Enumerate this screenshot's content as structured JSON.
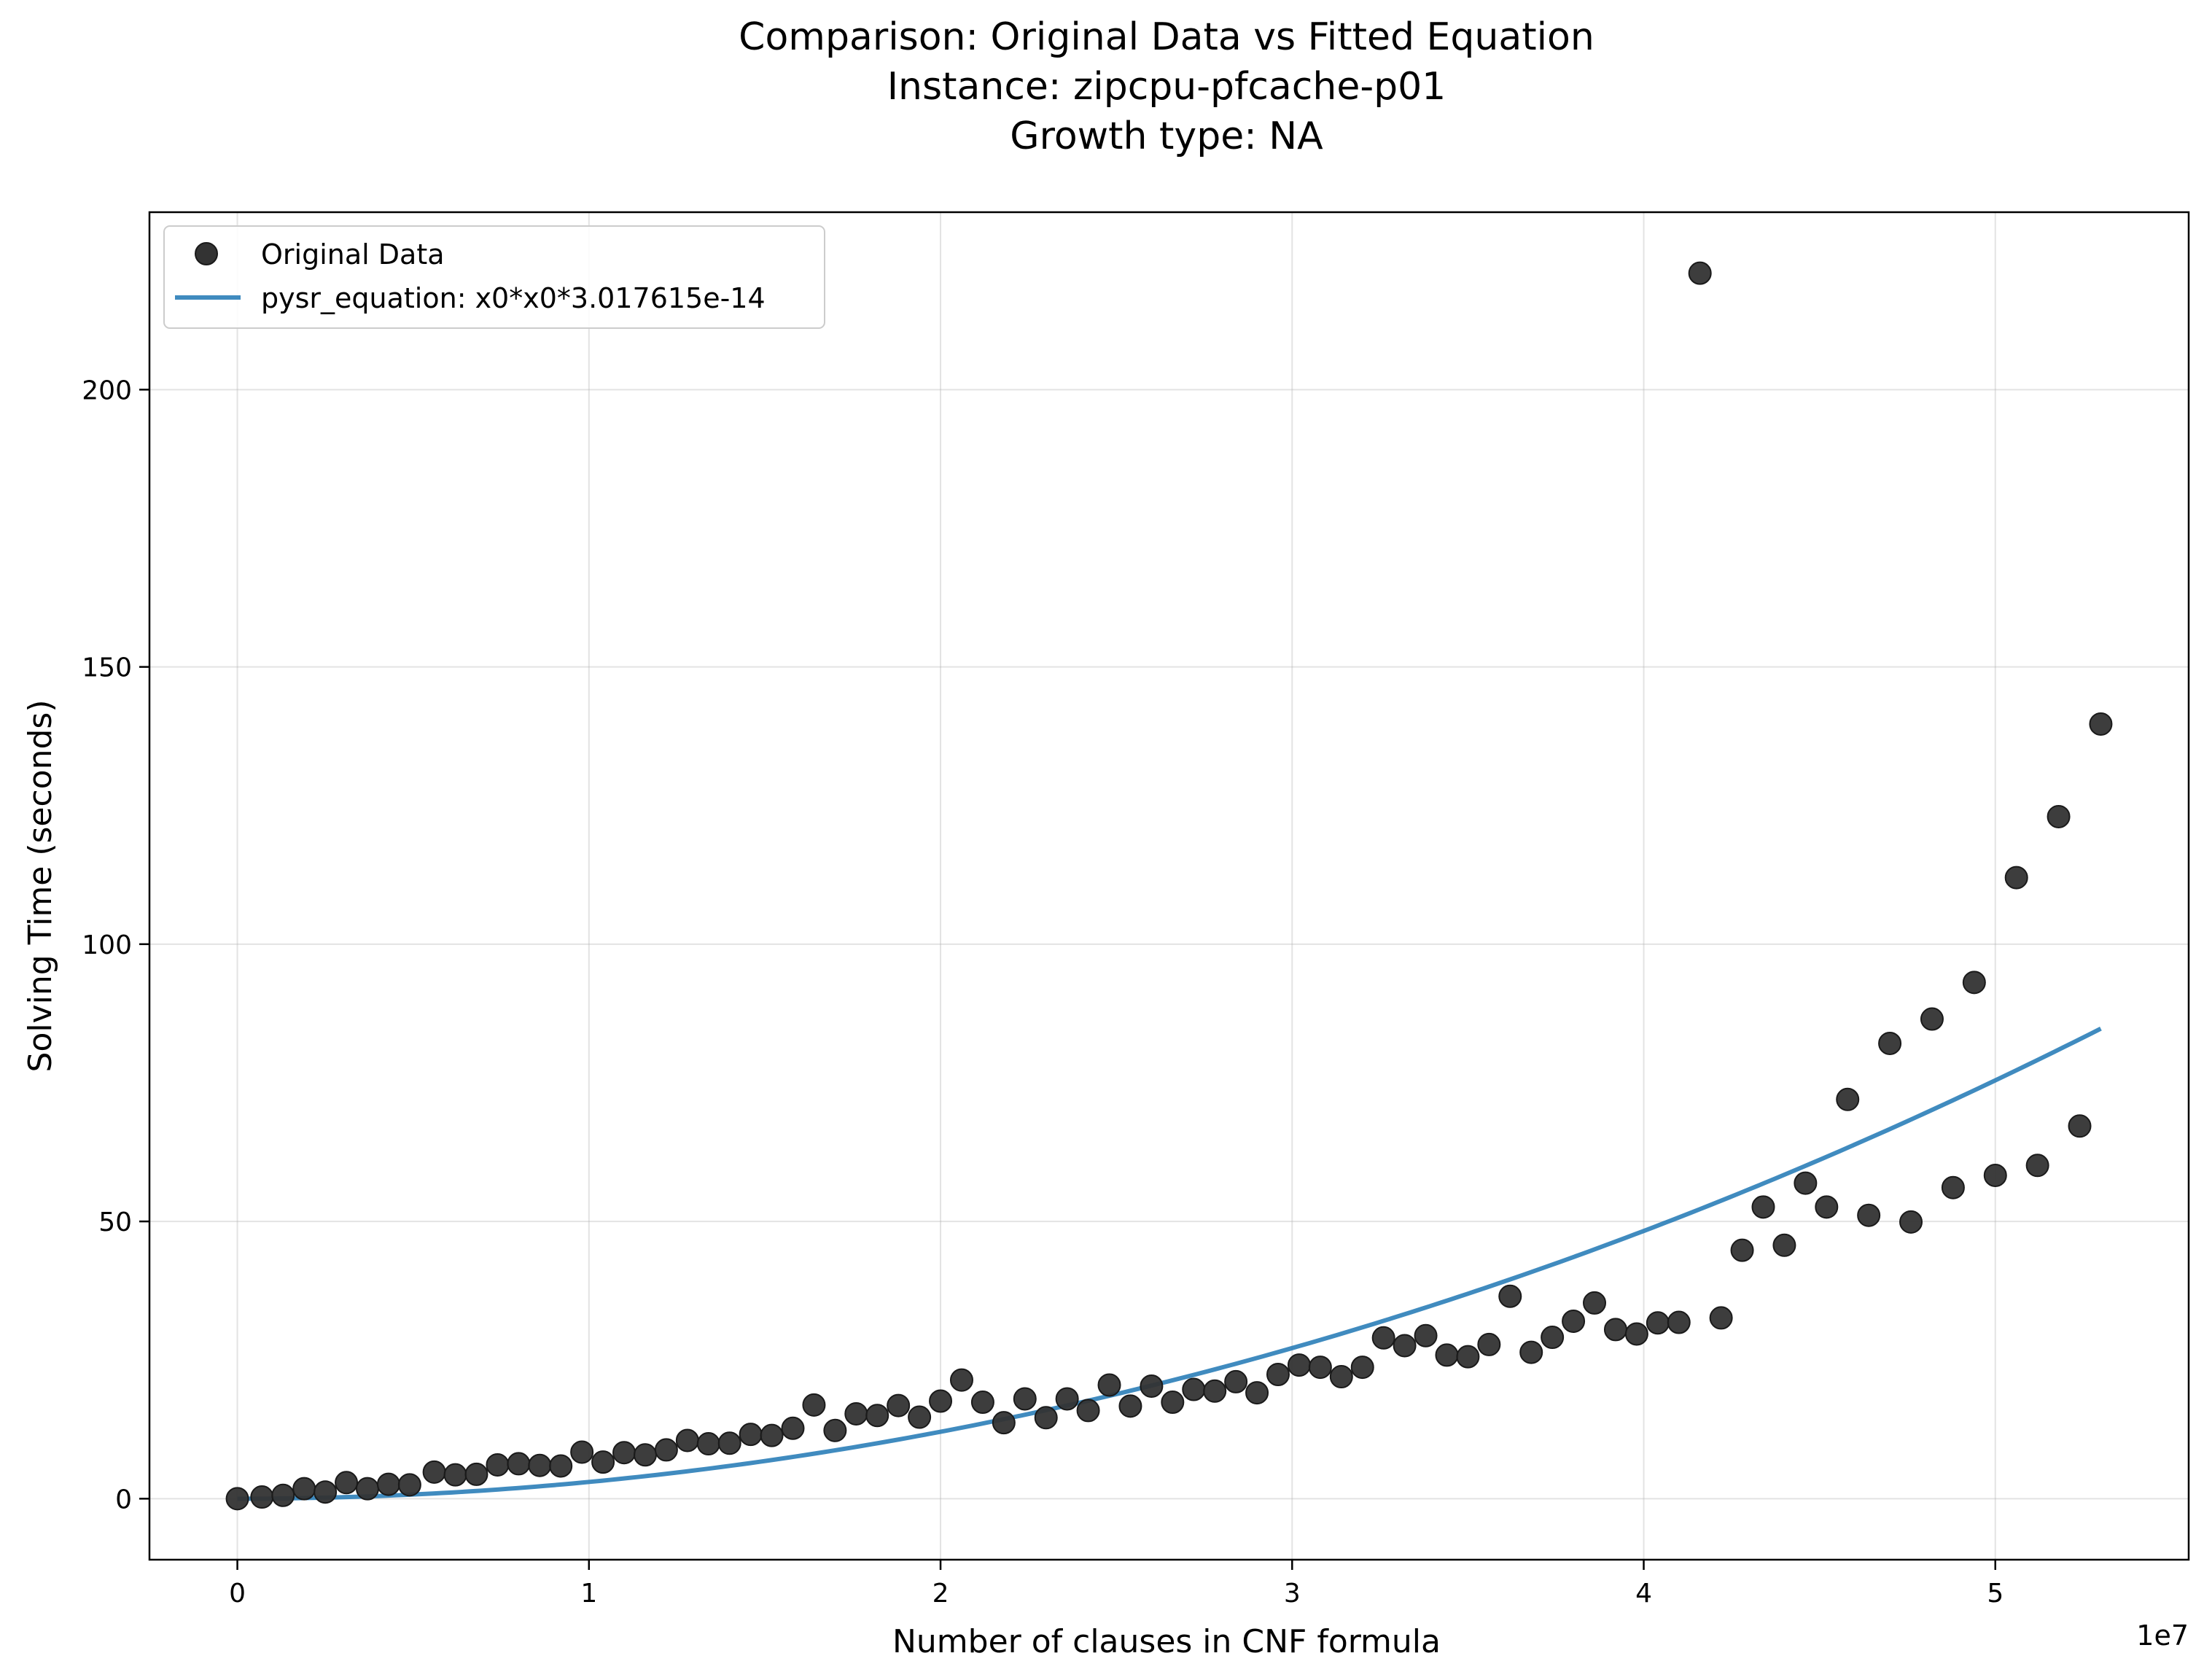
{
  "chart_data": {
    "type": "scatter",
    "title_lines": [
      "Comparison: Original Data vs Fitted Equation",
      "Instance: zipcpu-pfcache-p01",
      "Growth type: NA"
    ],
    "xlabel": "Number of clauses in CNF formula",
    "ylabel": "Solving Time (seconds)",
    "x_offset_label": "1e7",
    "x_scale": 10000000,
    "xlim": [
      -2500000,
      55500000
    ],
    "ylim": [
      -11,
      232
    ],
    "x_ticks": [
      0,
      10000000,
      20000000,
      30000000,
      40000000,
      50000000
    ],
    "x_tick_labels": [
      "0",
      "1",
      "2",
      "3",
      "4",
      "5"
    ],
    "y_ticks": [
      0,
      50,
      100,
      150,
      200
    ],
    "y_tick_labels": [
      "0",
      "50",
      "100",
      "150",
      "200"
    ],
    "grid": true,
    "legend_position": "top-left",
    "series": [
      {
        "name": "Original Data",
        "kind": "scatter",
        "color": "#333333",
        "points": [
          [
            0,
            0.0
          ],
          [
            700000,
            0.3
          ],
          [
            1300000,
            0.6
          ],
          [
            1900000,
            1.8
          ],
          [
            2500000,
            1.2
          ],
          [
            3100000,
            2.9
          ],
          [
            3700000,
            1.8
          ],
          [
            4300000,
            2.6
          ],
          [
            4900000,
            2.5
          ],
          [
            5600000,
            4.8
          ],
          [
            6200000,
            4.3
          ],
          [
            6800000,
            4.4
          ],
          [
            7400000,
            6.1
          ],
          [
            8000000,
            6.3
          ],
          [
            8600000,
            6.0
          ],
          [
            9200000,
            5.9
          ],
          [
            9800000,
            8.4
          ],
          [
            10400000,
            6.6
          ],
          [
            11000000,
            8.3
          ],
          [
            11600000,
            7.9
          ],
          [
            12200000,
            8.8
          ],
          [
            12800000,
            10.5
          ],
          [
            13400000,
            9.9
          ],
          [
            14000000,
            10.0
          ],
          [
            14600000,
            11.6
          ],
          [
            15200000,
            11.4
          ],
          [
            15800000,
            12.7
          ],
          [
            16400000,
            16.9
          ],
          [
            17000000,
            12.3
          ],
          [
            17600000,
            15.3
          ],
          [
            18200000,
            15.0
          ],
          [
            18800000,
            16.8
          ],
          [
            19400000,
            14.7
          ],
          [
            20000000,
            17.6
          ],
          [
            20600000,
            21.4
          ],
          [
            21200000,
            17.4
          ],
          [
            21800000,
            13.7
          ],
          [
            22400000,
            18.0
          ],
          [
            23000000,
            14.6
          ],
          [
            23600000,
            18.0
          ],
          [
            24200000,
            15.9
          ],
          [
            24800000,
            20.5
          ],
          [
            25400000,
            16.7
          ],
          [
            26000000,
            20.3
          ],
          [
            26600000,
            17.4
          ],
          [
            27200000,
            19.7
          ],
          [
            27800000,
            19.4
          ],
          [
            28400000,
            21.1
          ],
          [
            29000000,
            19.1
          ],
          [
            29600000,
            22.4
          ],
          [
            30200000,
            24.1
          ],
          [
            30800000,
            23.7
          ],
          [
            31400000,
            22.0
          ],
          [
            32000000,
            23.7
          ],
          [
            32600000,
            29.0
          ],
          [
            33200000,
            27.6
          ],
          [
            33800000,
            29.4
          ],
          [
            34400000,
            25.9
          ],
          [
            35000000,
            25.6
          ],
          [
            35600000,
            27.8
          ],
          [
            36200000,
            36.5
          ],
          [
            36800000,
            26.4
          ],
          [
            37400000,
            29.1
          ],
          [
            38000000,
            32.0
          ],
          [
            38600000,
            35.3
          ],
          [
            39200000,
            30.5
          ],
          [
            39800000,
            29.7
          ],
          [
            40400000,
            31.7
          ],
          [
            41000000,
            31.8
          ],
          [
            41600000,
            221.0
          ],
          [
            42200000,
            32.6
          ],
          [
            42800000,
            44.8
          ],
          [
            43400000,
            52.6
          ],
          [
            44000000,
            45.7
          ],
          [
            44600000,
            56.9
          ],
          [
            45200000,
            52.6
          ],
          [
            45800000,
            72.0
          ],
          [
            46400000,
            51.1
          ],
          [
            47000000,
            82.1
          ],
          [
            47600000,
            49.9
          ],
          [
            48200000,
            86.5
          ],
          [
            48800000,
            56.1
          ],
          [
            49400000,
            93.1
          ],
          [
            50000000,
            58.3
          ],
          [
            50600000,
            112.0
          ],
          [
            51200000,
            60.1
          ],
          [
            51800000,
            123.0
          ],
          [
            52400000,
            67.2
          ],
          [
            53000000,
            139.7
          ]
        ]
      },
      {
        "name": "pysr_equation: x0*x0*3.017615e-14",
        "kind": "line",
        "color": "#1f77b4",
        "coefficient": 3.017615e-14,
        "x_range": [
          0,
          53000000
        ]
      }
    ]
  }
}
